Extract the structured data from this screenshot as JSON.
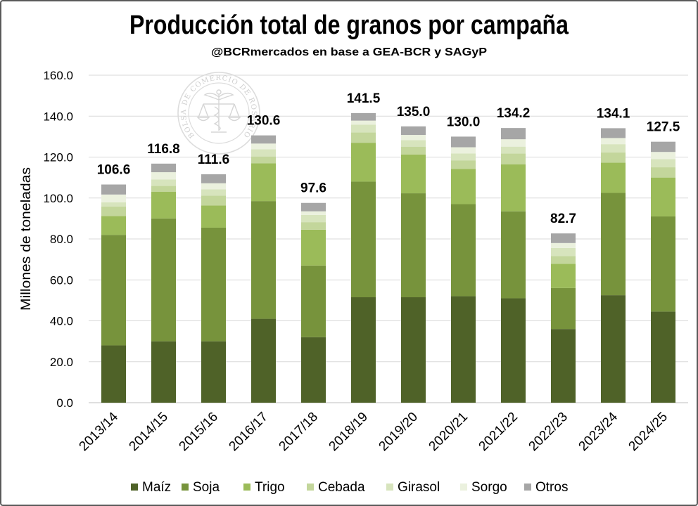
{
  "watermark": {
    "text": "BOLSA DE COMERCIO DE ROSARIO"
  },
  "colors": {
    "gridline": "#d9d9d9",
    "axis": "#bfbfbf",
    "frame": "#5a5a5a"
  },
  "chart_data": {
    "type": "bar",
    "stacked": true,
    "title": "Producción total de granos por campaña",
    "subtitle": "@BCRmercados en base a GEA-BCR y SAGyP",
    "ylabel": "Millones de toneladas",
    "ylim": [
      0,
      160
    ],
    "yticks": [
      "0.0",
      "20.0",
      "40.0",
      "60.0",
      "80.0",
      "100.0",
      "120.0",
      "140.0",
      "160.0"
    ],
    "grid": true,
    "legend_position": "bottom",
    "categories": [
      "2013/14",
      "2014/15",
      "2015/16",
      "2016/17",
      "2017/18",
      "2018/19",
      "2019/20",
      "2020/21",
      "2021/22",
      "2022/23",
      "2023/24",
      "2024/25"
    ],
    "data_labels": [
      "106.6",
      "116.8",
      "111.6",
      "130.6",
      "97.6",
      "141.5",
      "135.0",
      "130.0",
      "134.2",
      "82.7",
      "134.1",
      "127.5"
    ],
    "series": [
      {
        "name": "Maíz",
        "color": "#4f6228",
        "values": [
          28.0,
          30.0,
          30.0,
          41.0,
          32.0,
          51.5,
          51.5,
          52.0,
          51.0,
          36.0,
          52.5,
          44.5
        ]
      },
      {
        "name": "Soja",
        "color": "#77933c",
        "values": [
          54.0,
          60.0,
          55.5,
          57.5,
          35.0,
          56.5,
          50.8,
          45.0,
          42.5,
          20.0,
          50.0,
          46.5
        ]
      },
      {
        "name": "Trigo",
        "color": "#9bbb59",
        "values": [
          9.2,
          13.0,
          10.8,
          18.5,
          17.5,
          19.0,
          19.0,
          17.2,
          23.0,
          11.8,
          14.8,
          19.0
        ]
      },
      {
        "name": "Cebada",
        "color": "#c3d69b",
        "values": [
          4.7,
          2.9,
          4.9,
          3.3,
          3.7,
          5.0,
          3.8,
          4.2,
          5.2,
          3.8,
          5.0,
          5.0
        ]
      },
      {
        "name": "Girasol",
        "color": "#d7e4bd",
        "values": [
          2.0,
          3.2,
          3.0,
          3.5,
          3.5,
          3.8,
          3.2,
          3.4,
          3.4,
          4.0,
          4.0,
          4.0
        ]
      },
      {
        "name": "Sorgo",
        "color": "#ebf1de",
        "values": [
          3.8,
          3.5,
          3.0,
          2.8,
          1.8,
          2.0,
          2.5,
          3.0,
          3.6,
          2.4,
          3.0,
          3.5
        ]
      },
      {
        "name": "Otros",
        "color": "#a6a6a6",
        "values": [
          4.9,
          4.2,
          4.4,
          4.0,
          4.1,
          3.7,
          4.2,
          5.2,
          5.5,
          4.7,
          4.8,
          5.0
        ]
      }
    ]
  }
}
